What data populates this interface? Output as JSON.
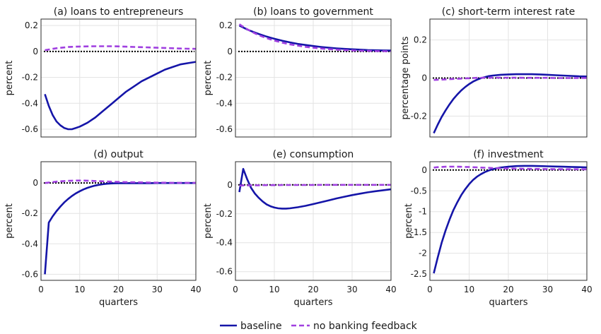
{
  "legend": {
    "items": [
      {
        "label": "baseline",
        "color": "#1515a8",
        "dash": "solid"
      },
      {
        "label": "no banking feedback",
        "color": "#a040e0",
        "dash": "dashed"
      }
    ],
    "placement": "bottom-center"
  },
  "zero_line": {
    "color": "#000000",
    "style": "dotted"
  },
  "chart_data": [
    {
      "type": "line",
      "title": "(a) loans to entrepreneurs",
      "xlabel": "",
      "ylabel": "percent",
      "xlim": [
        0,
        40
      ],
      "ylim": [
        -0.66,
        0.25
      ],
      "yticks": [
        0.2,
        0,
        -0.2,
        -0.4,
        -0.6
      ],
      "ytick_labels": [
        "0.2",
        "0",
        "-0.2",
        "-0.4",
        "-0.6"
      ],
      "xticks": [
        0,
        10,
        20,
        30,
        40
      ],
      "xtick_labels": [],
      "grid": true,
      "x": [
        1,
        2,
        3,
        4,
        5,
        6,
        7,
        8,
        9,
        10,
        12,
        14,
        16,
        18,
        20,
        22,
        24,
        26,
        28,
        30,
        32,
        34,
        36,
        38,
        40
      ],
      "series": [
        {
          "name": "baseline",
          "values": [
            -0.33,
            -0.42,
            -0.49,
            -0.54,
            -0.57,
            -0.59,
            -0.6,
            -0.6,
            -0.59,
            -0.58,
            -0.55,
            -0.51,
            -0.46,
            -0.41,
            -0.36,
            -0.31,
            -0.27,
            -0.23,
            -0.2,
            -0.17,
            -0.14,
            -0.12,
            -0.1,
            -0.09,
            -0.08
          ]
        },
        {
          "name": "no banking feedback",
          "values": [
            0.01,
            0.015,
            0.02,
            0.025,
            0.028,
            0.031,
            0.034,
            0.036,
            0.037,
            0.038,
            0.039,
            0.04,
            0.04,
            0.04,
            0.039,
            0.037,
            0.035,
            0.033,
            0.031,
            0.029,
            0.027,
            0.025,
            0.023,
            0.021,
            0.02
          ]
        }
      ]
    },
    {
      "type": "line",
      "title": "(b) loans to government",
      "xlabel": "",
      "ylabel": "percent",
      "xlim": [
        0,
        40
      ],
      "ylim": [
        -0.66,
        0.25
      ],
      "yticks": [
        0.2,
        0,
        -0.2,
        -0.4,
        -0.6
      ],
      "ytick_labels": [
        "0.2",
        "0",
        "-0.2",
        "-0.4",
        "-0.6"
      ],
      "xticks": [
        0,
        10,
        20,
        30,
        40
      ],
      "xtick_labels": [],
      "grid": true,
      "x": [
        1,
        2,
        3,
        4,
        5,
        6,
        8,
        10,
        12,
        14,
        16,
        18,
        20,
        22,
        24,
        26,
        28,
        30,
        32,
        34,
        36,
        38,
        40
      ],
      "series": [
        {
          "name": "baseline",
          "values": [
            0.2,
            0.185,
            0.17,
            0.158,
            0.146,
            0.135,
            0.115,
            0.098,
            0.083,
            0.07,
            0.059,
            0.05,
            0.042,
            0.035,
            0.029,
            0.024,
            0.02,
            0.017,
            0.014,
            0.011,
            0.009,
            0.008,
            0.007
          ]
        },
        {
          "name": "no banking feedback",
          "values": [
            0.21,
            0.19,
            0.172,
            0.155,
            0.14,
            0.126,
            0.103,
            0.084,
            0.068,
            0.055,
            0.045,
            0.036,
            0.029,
            0.023,
            0.018,
            0.014,
            0.011,
            0.008,
            0.006,
            0.004,
            0.003,
            0.002,
            0.001
          ]
        }
      ]
    },
    {
      "type": "line",
      "title": "(c) short-term interest rate",
      "xlabel": "",
      "ylabel": "percentage points",
      "xlim": [
        0,
        40
      ],
      "ylim": [
        -0.31,
        0.31
      ],
      "yticks": [
        0.2,
        0,
        -0.2
      ],
      "ytick_labels": [
        "0.2",
        "0",
        "-0.2"
      ],
      "xticks": [
        0,
        10,
        20,
        30,
        40
      ],
      "xtick_labels": [],
      "grid": true,
      "x": [
        1,
        2,
        3,
        4,
        5,
        6,
        7,
        8,
        9,
        10,
        11,
        12,
        13,
        14,
        15,
        16,
        18,
        20,
        22,
        24,
        26,
        28,
        30,
        32,
        34,
        36,
        38,
        40
      ],
      "series": [
        {
          "name": "baseline",
          "values": [
            -0.29,
            -0.245,
            -0.205,
            -0.17,
            -0.138,
            -0.11,
            -0.086,
            -0.065,
            -0.047,
            -0.032,
            -0.019,
            -0.009,
            -0.001,
            0.005,
            0.01,
            0.013,
            0.017,
            0.019,
            0.02,
            0.02,
            0.02,
            0.019,
            0.017,
            0.015,
            0.013,
            0.011,
            0.009,
            0.008
          ]
        },
        {
          "name": "no banking feedback",
          "values": [
            -0.01,
            -0.009,
            -0.008,
            -0.007,
            -0.006,
            -0.005,
            -0.004,
            -0.003,
            -0.002,
            -0.001,
            0,
            0.001,
            0.001,
            0.002,
            0.002,
            0.002,
            0.002,
            0.002,
            0.002,
            0.001,
            0.001,
            0.001,
            0.001,
            0,
            0,
            0,
            0,
            0
          ]
        }
      ]
    },
    {
      "type": "line",
      "title": "(d) output",
      "xlabel": "",
      "ylabel": "percent",
      "xlim": [
        0,
        40
      ],
      "ylim": [
        -0.64,
        0.14
      ],
      "yticks": [
        0,
        -0.2,
        -0.4,
        -0.6
      ],
      "ytick_labels": [
        "0",
        "-0.2",
        "-0.4",
        "-0.6"
      ],
      "xticks": [
        0,
        10,
        20,
        30,
        40
      ],
      "xtick_labels": [
        "0",
        "10",
        "20",
        "30",
        "40"
      ],
      "grid": true,
      "x": [
        1,
        2,
        3,
        4,
        5,
        6,
        7,
        8,
        9,
        10,
        11,
        12,
        13,
        14,
        15,
        16,
        17,
        18,
        19,
        20,
        22,
        24,
        26,
        28,
        30,
        32,
        34,
        36,
        38,
        40
      ],
      "series": [
        {
          "name": "baseline",
          "values": [
            -0.6,
            -0.26,
            -0.22,
            -0.185,
            -0.155,
            -0.128,
            -0.105,
            -0.085,
            -0.068,
            -0.054,
            -0.042,
            -0.032,
            -0.024,
            -0.017,
            -0.012,
            -0.008,
            -0.005,
            -0.003,
            -0.002,
            -0.001,
            -0.001,
            -0.001,
            -0.001,
            -0.001,
            0,
            0,
            0,
            0,
            0,
            0
          ]
        },
        {
          "name": "no banking feedback",
          "values": [
            0,
            0.003,
            0.006,
            0.009,
            0.011,
            0.013,
            0.014,
            0.015,
            0.016,
            0.016,
            0.016,
            0.015,
            0.014,
            0.013,
            0.012,
            0.011,
            0.01,
            0.009,
            0.008,
            0.007,
            0.006,
            0.005,
            0.004,
            0.003,
            0.002,
            0.002,
            0.001,
            0.001,
            0.001,
            0.001
          ]
        }
      ]
    },
    {
      "type": "line",
      "title": "(e) consumption",
      "xlabel": "",
      "ylabel": "percent",
      "xlim": [
        0,
        40
      ],
      "ylim": [
        -0.66,
        0.16
      ],
      "yticks": [
        0,
        -0.2,
        -0.4,
        -0.6
      ],
      "ytick_labels": [
        "0",
        "-0.2",
        "-0.4",
        "-0.6"
      ],
      "xticks": [
        0,
        10,
        20,
        30,
        40
      ],
      "xtick_labels": [
        "0",
        "10",
        "20",
        "30",
        "40"
      ],
      "grid": true,
      "x": [
        1,
        2,
        3,
        4,
        5,
        6,
        7,
        8,
        9,
        10,
        11,
        12,
        13,
        14,
        16,
        18,
        20,
        22,
        24,
        26,
        28,
        30,
        32,
        34,
        36,
        38,
        40
      ],
      "series": [
        {
          "name": "baseline",
          "values": [
            -0.05,
            0.11,
            0.04,
            -0.02,
            -0.06,
            -0.09,
            -0.115,
            -0.135,
            -0.148,
            -0.157,
            -0.162,
            -0.164,
            -0.164,
            -0.162,
            -0.155,
            -0.145,
            -0.133,
            -0.12,
            -0.107,
            -0.094,
            -0.082,
            -0.071,
            -0.061,
            -0.052,
            -0.044,
            -0.037,
            -0.031
          ]
        },
        {
          "name": "no banking feedback",
          "values": [
            -0.005,
            -0.004,
            -0.004,
            -0.003,
            -0.003,
            -0.003,
            -0.002,
            -0.002,
            -0.002,
            -0.002,
            -0.002,
            -0.001,
            -0.001,
            -0.001,
            -0.001,
            -0.001,
            -0.001,
            0,
            0,
            0,
            0,
            0,
            0,
            0,
            0,
            0,
            0
          ]
        }
      ]
    },
    {
      "type": "line",
      "title": "(f) investment",
      "xlabel": "",
      "ylabel": "percent",
      "xlim": [
        0,
        40
      ],
      "ylim": [
        -2.65,
        0.2
      ],
      "yticks": [
        0,
        -0.5,
        -1,
        -1.5,
        -2,
        -2.5
      ],
      "ytick_labels": [
        "0",
        "-0.5",
        "-1",
        "-1.5",
        "-2",
        "-2.5"
      ],
      "xticks": [
        0,
        10,
        20,
        30,
        40
      ],
      "xtick_labels": [
        "0",
        "10",
        "20",
        "30",
        "40"
      ],
      "grid": true,
      "x": [
        1,
        2,
        3,
        4,
        5,
        6,
        7,
        8,
        9,
        10,
        11,
        12,
        13,
        14,
        15,
        16,
        17,
        18,
        20,
        22,
        24,
        26,
        28,
        30,
        32,
        34,
        36,
        38,
        40
      ],
      "series": [
        {
          "name": "baseline",
          "values": [
            -2.48,
            -2.1,
            -1.75,
            -1.45,
            -1.19,
            -0.96,
            -0.77,
            -0.6,
            -0.46,
            -0.34,
            -0.24,
            -0.16,
            -0.1,
            -0.05,
            -0.01,
            0.02,
            0.04,
            0.06,
            0.08,
            0.095,
            0.1,
            0.1,
            0.095,
            0.09,
            0.085,
            0.08,
            0.075,
            0.07,
            0.065
          ]
        },
        {
          "name": "no banking feedback",
          "values": [
            0.06,
            0.07,
            0.075,
            0.08,
            0.082,
            0.082,
            0.08,
            0.078,
            0.075,
            0.072,
            0.068,
            0.064,
            0.06,
            0.056,
            0.052,
            0.048,
            0.045,
            0.042,
            0.037,
            0.033,
            0.03,
            0.027,
            0.025,
            0.023,
            0.021,
            0.02,
            0.019,
            0.018,
            0.017
          ]
        }
      ]
    }
  ],
  "shared_xlabel": "quarters"
}
